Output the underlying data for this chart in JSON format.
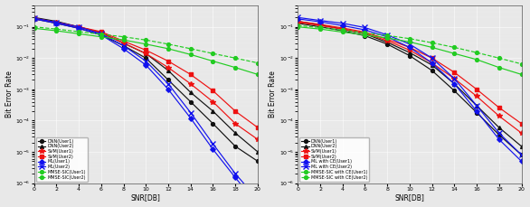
{
  "snr": [
    0,
    2,
    4,
    6,
    8,
    10,
    12,
    14,
    16,
    18,
    20
  ],
  "plot1": {
    "xlabel": "SNR[DB]",
    "ylabel": "Bit Error Rate",
    "legend": [
      "DNN(User1)",
      "DNN(User2)",
      "SVM(User1)",
      "SVM(User2)",
      "ML(User1)",
      "ML(User2)",
      "MMSE-SIC(User1)",
      "MMSE-SIC(User2)"
    ],
    "DNN_User1": [
      0.18,
      0.13,
      0.09,
      0.055,
      0.025,
      0.01,
      0.002,
      0.0004,
      8e-05,
      1.5e-05,
      5e-06
    ],
    "DNN_User2": [
      0.2,
      0.15,
      0.1,
      0.065,
      0.03,
      0.014,
      0.004,
      0.0008,
      0.0002,
      4e-05,
      1e-05
    ],
    "SVM_User1": [
      0.18,
      0.14,
      0.1,
      0.065,
      0.03,
      0.014,
      0.005,
      0.0015,
      0.0004,
      8e-05,
      2.5e-05
    ],
    "SVM_User2": [
      0.19,
      0.14,
      0.1,
      0.07,
      0.035,
      0.018,
      0.008,
      0.003,
      0.0009,
      0.0002,
      6e-05
    ],
    "ML_User1": [
      0.18,
      0.13,
      0.09,
      0.055,
      0.02,
      0.006,
      0.001,
      0.00012,
      1.2e-05,
      1.5e-06,
      2e-07
    ],
    "ML_User2": [
      0.19,
      0.14,
      0.1,
      0.06,
      0.025,
      0.008,
      0.0015,
      0.00018,
      1.8e-05,
      2e-06,
      3e-07
    ],
    "MMSE_SIC_User1": [
      0.09,
      0.075,
      0.06,
      0.048,
      0.038,
      0.028,
      0.02,
      0.013,
      0.008,
      0.005,
      0.003
    ],
    "MMSE_SIC_User2": [
      0.1,
      0.085,
      0.07,
      0.058,
      0.048,
      0.038,
      0.028,
      0.02,
      0.014,
      0.01,
      0.007
    ]
  },
  "plot2": {
    "xlabel": "SNR[DB]",
    "ylabel": "Bit Error Rate",
    "legend": [
      "DNN(User1)",
      "DNN(User2)",
      "SVM(User1)",
      "SVM(User2)",
      "ML with CE(User1)",
      "ML with CE(User2)",
      "MMSE-SIC with CE(User1)",
      "MMSE-SIC with CE(User2)"
    ],
    "DNN_User1": [
      0.13,
      0.1,
      0.075,
      0.052,
      0.028,
      0.012,
      0.004,
      0.0009,
      0.00018,
      3.5e-05,
      8e-06
    ],
    "DNN_User2": [
      0.15,
      0.115,
      0.085,
      0.06,
      0.032,
      0.015,
      0.006,
      0.0015,
      0.0003,
      6e-05,
      1.5e-05
    ],
    "SVM_User1": [
      0.14,
      0.11,
      0.085,
      0.062,
      0.036,
      0.018,
      0.007,
      0.0022,
      0.0006,
      0.00014,
      4e-05
    ],
    "SVM_User2": [
      0.15,
      0.12,
      0.092,
      0.068,
      0.04,
      0.022,
      0.01,
      0.0035,
      0.001,
      0.00026,
      8e-05
    ],
    "ML_CE_User1": [
      0.18,
      0.145,
      0.11,
      0.08,
      0.048,
      0.022,
      0.007,
      0.0015,
      0.0002,
      2.5e-05,
      5e-06
    ],
    "ML_CE_User2": [
      0.2,
      0.16,
      0.13,
      0.095,
      0.055,
      0.028,
      0.01,
      0.0022,
      0.0003,
      4e-05,
      8e-06
    ],
    "MMSE_SIC_CE_User1": [
      0.1,
      0.085,
      0.068,
      0.055,
      0.044,
      0.033,
      0.022,
      0.014,
      0.009,
      0.005,
      0.003
    ],
    "MMSE_SIC_CE_User2": [
      0.11,
      0.095,
      0.078,
      0.064,
      0.053,
      0.042,
      0.031,
      0.022,
      0.015,
      0.01,
      0.0065
    ]
  },
  "colors": {
    "black": "#111111",
    "red": "#EE1111",
    "blue": "#1111EE",
    "green": "#22CC22"
  },
  "bg_color": "#e8e8e8"
}
